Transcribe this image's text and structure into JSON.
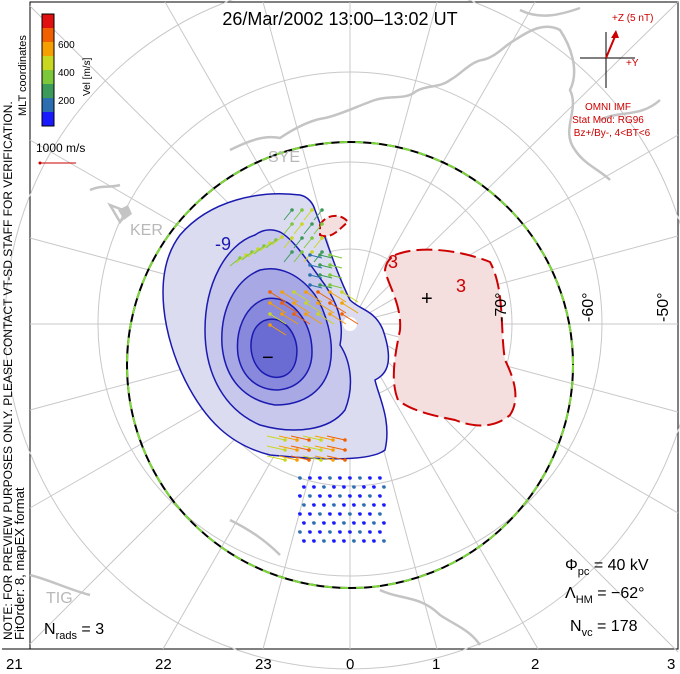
{
  "title": "26/Mar/2002 13:00–13:02 UT",
  "side_note": "NOTE: FOR PREVIEW PURPOSES ONLY. PLEASE CONTACT VT-SD STAFF FOR VERIFICATION.",
  "coords_label": "MLT coordinates",
  "colorbar": {
    "label": "Vel [m/s]",
    "ticks": [
      "600",
      "400",
      "200"
    ],
    "colors": [
      "#1a1aff",
      "#2c6fb0",
      "#3c9a5a",
      "#7dc83a",
      "#c8d820",
      "#f5a000",
      "#f06000",
      "#e01010"
    ]
  },
  "vector_scale": "1000 m/s",
  "fit_order": "FitOrder: 8, mapEX format",
  "imf": {
    "z_label": "+Z (5 nT)",
    "y_label": "+Y",
    "source": "OMNI IMF",
    "stat_mod": "Stat Mod: RG96",
    "condition": "Bz+/By-, 4<BT<6"
  },
  "stations": {
    "sye": "SYE",
    "ker": "KER",
    "tig": "TIG"
  },
  "lat_labels": [
    "-70°",
    "-60°",
    "-50°"
  ],
  "mlt_labels": [
    "21",
    "22",
    "23",
    "0",
    "1",
    "2",
    "3"
  ],
  "contours": {
    "neg_label": "-9",
    "pos_label": "3",
    "pos_label2": "3",
    "min_marker": "−",
    "max_marker": "+"
  },
  "stats": {
    "phi_sym": "Φ",
    "phi_sub": "pc",
    "phi_val": " = 40 kV",
    "lam_sym": "Λ",
    "lam_sub": "HM",
    "lam_val": " = −62°",
    "nvc_sym": "N",
    "nvc_sub": "vc",
    "nvc_val": " = 178",
    "nrads_sym": "N",
    "nrads_sub": "rads",
    "nrads_val": " = 3"
  }
}
